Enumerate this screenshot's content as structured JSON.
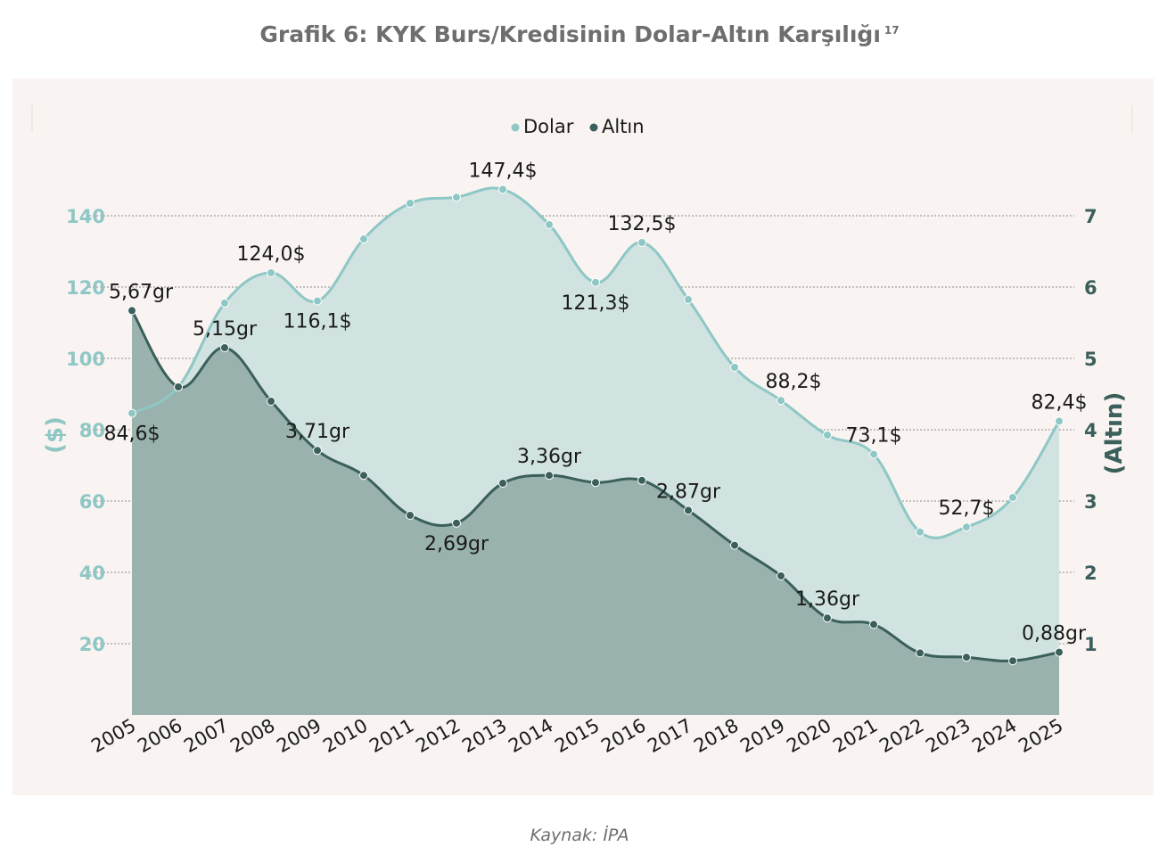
{
  "title": "Grafik 6: KYK Burs/Kredisinin Dolar-Altın Karşılığı",
  "footnote": "17",
  "source": "Kaynak: İPA",
  "colors": {
    "dolar": "#8ec7c5",
    "dolar_fill": "#d0e3e1",
    "altin": "#3b5f5b",
    "altin_fill": "#96afaa",
    "axis_left": "#8ec7c5",
    "axis_right": "#3b5f5b",
    "background": "#f9f4f1"
  },
  "chart_data": {
    "type": "area",
    "legend": {
      "position": "top",
      "items": [
        "Dolar",
        "Altın"
      ]
    },
    "x": [
      "2005",
      "2006",
      "2007",
      "2008",
      "2009",
      "2010",
      "2011",
      "2012",
      "2013",
      "2014",
      "2015",
      "2016",
      "2017",
      "2018",
      "2019",
      "2020",
      "2021",
      "2022",
      "2023",
      "2024",
      "2025"
    ],
    "y_left": {
      "label": "($)",
      "ticks": [
        "20",
        "40",
        "60",
        "80",
        "100",
        "120",
        "140"
      ]
    },
    "y_right": {
      "label": "(Altın)",
      "ticks": [
        "1",
        "2",
        "3",
        "4",
        "5",
        "6",
        "7"
      ]
    },
    "grid": true,
    "series": [
      {
        "name": "Dolar",
        "axis": "left",
        "values": [
          84.6,
          92,
          115.5,
          124.0,
          116.1,
          133.5,
          143.5,
          145.2,
          147.4,
          137.5,
          121.3,
          132.5,
          116.5,
          97.5,
          88.2,
          78.5,
          73.1,
          51.3,
          52.7,
          61,
          82.4
        ],
        "labels": {
          "0": "84,6$",
          "3": "124,0$",
          "4": "116,1$",
          "8": "147,4$",
          "10": "121,3$",
          "11": "132,5$",
          "14": "88,2$",
          "16": "73,1$",
          "18": "52,7$",
          "20": "82,4$"
        }
      },
      {
        "name": "Altın",
        "axis": "right",
        "values": [
          5.67,
          4.6,
          5.15,
          4.4,
          3.71,
          3.36,
          2.8,
          2.69,
          3.25,
          3.36,
          3.26,
          3.29,
          2.87,
          2.38,
          1.95,
          1.36,
          1.27,
          0.87,
          0.81,
          0.76,
          0.88
        ],
        "labels": {
          "0": "5,67gr",
          "2": "5,15gr",
          "4": "3,71gr",
          "7": "2,69gr",
          "9": "3,36gr",
          "12": "2,87gr",
          "15": "1,36gr",
          "20": "0,88gr"
        }
      }
    ]
  }
}
